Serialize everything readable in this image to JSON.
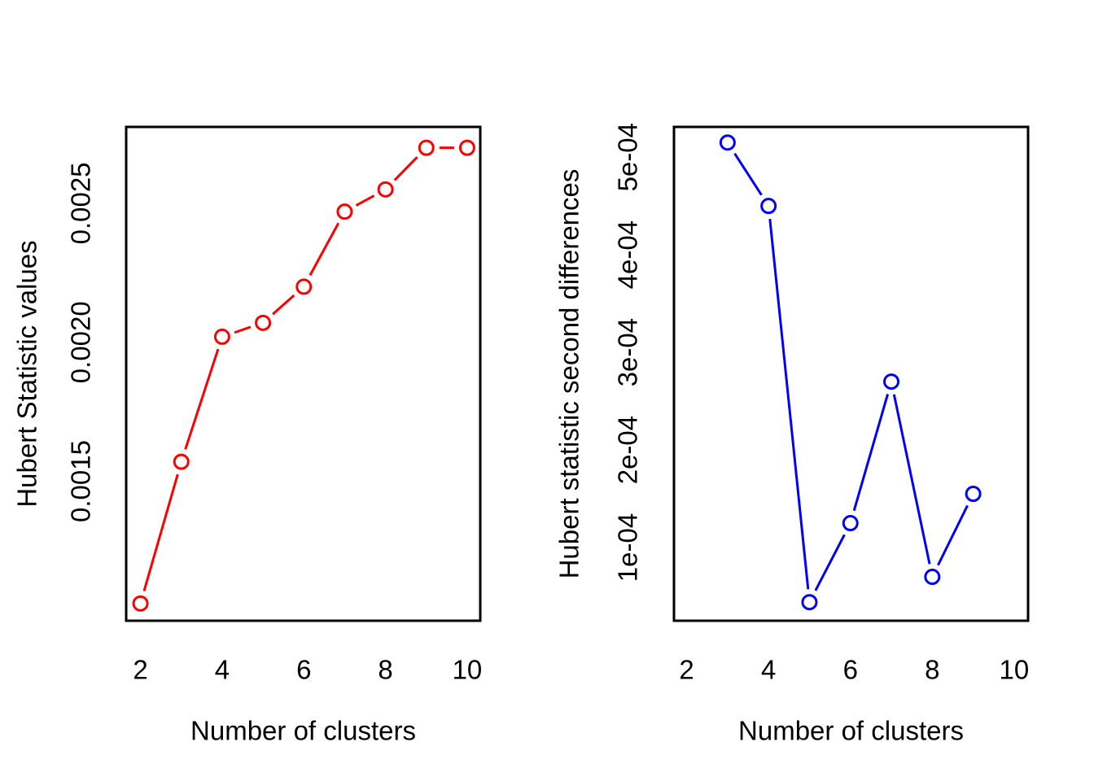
{
  "page": {
    "background": "#ffffff"
  },
  "chart_data": [
    {
      "id": "hubert-values",
      "type": "line",
      "title": "",
      "xlabel": "Number of clusters",
      "ylabel": "Hubert Statistic values",
      "series_name": "Hubert statistic values",
      "color": "#ff0000",
      "marker": "open-circle",
      "line_style": "points-and-lines",
      "x": [
        2,
        3,
        4,
        5,
        6,
        7,
        8,
        9,
        10
      ],
      "y": [
        0.00106,
        0.00157,
        0.00202,
        0.00207,
        0.0022,
        0.00247,
        0.00255,
        0.0027,
        0.0027
      ],
      "xticks": {
        "values": [
          2,
          4,
          6,
          8,
          10
        ],
        "labels": [
          "2",
          "4",
          "6",
          "8",
          "10"
        ]
      },
      "yticks": {
        "values": [
          0.0015,
          0.002,
          0.0025
        ],
        "labels": [
          "0.0015",
          "0.0020",
          "0.0025"
        ]
      },
      "xlim": [
        1.65,
        10.32
      ],
      "ylim": [
        0.000998,
        0.002775
      ],
      "grid": false,
      "legend": "none",
      "frame_color": "#000000"
    },
    {
      "id": "hubert-second-differences",
      "type": "line",
      "title": "",
      "xlabel": "Number of clusters",
      "ylabel": "Hubert statistic second differences",
      "series_name": "Hubert statistic second differences",
      "color": "#0000ff",
      "marker": "open-circle",
      "line_style": "points-and-lines",
      "x": [
        3,
        4,
        5,
        6,
        7,
        8,
        9
      ],
      "y": [
        0.000515,
        0.00045,
        4.4e-05,
        0.000125,
        0.00027,
        7e-05,
        0.000155
      ],
      "xticks": {
        "values": [
          2,
          4,
          6,
          8,
          10
        ],
        "labels": [
          "2",
          "4",
          "6",
          "8",
          "10"
        ]
      },
      "yticks": {
        "values": [
          0.0001,
          0.0002,
          0.0003,
          0.0004,
          0.0005
        ],
        "labels": [
          "1e-04",
          "2e-04",
          "3e-04",
          "4e-04",
          "5e-04"
        ]
      },
      "xlim": [
        1.69,
        10.34
      ],
      "ylim": [
        2.5e-05,
        0.000531
      ],
      "grid": false,
      "legend": "none",
      "frame_color": "#000000"
    }
  ]
}
